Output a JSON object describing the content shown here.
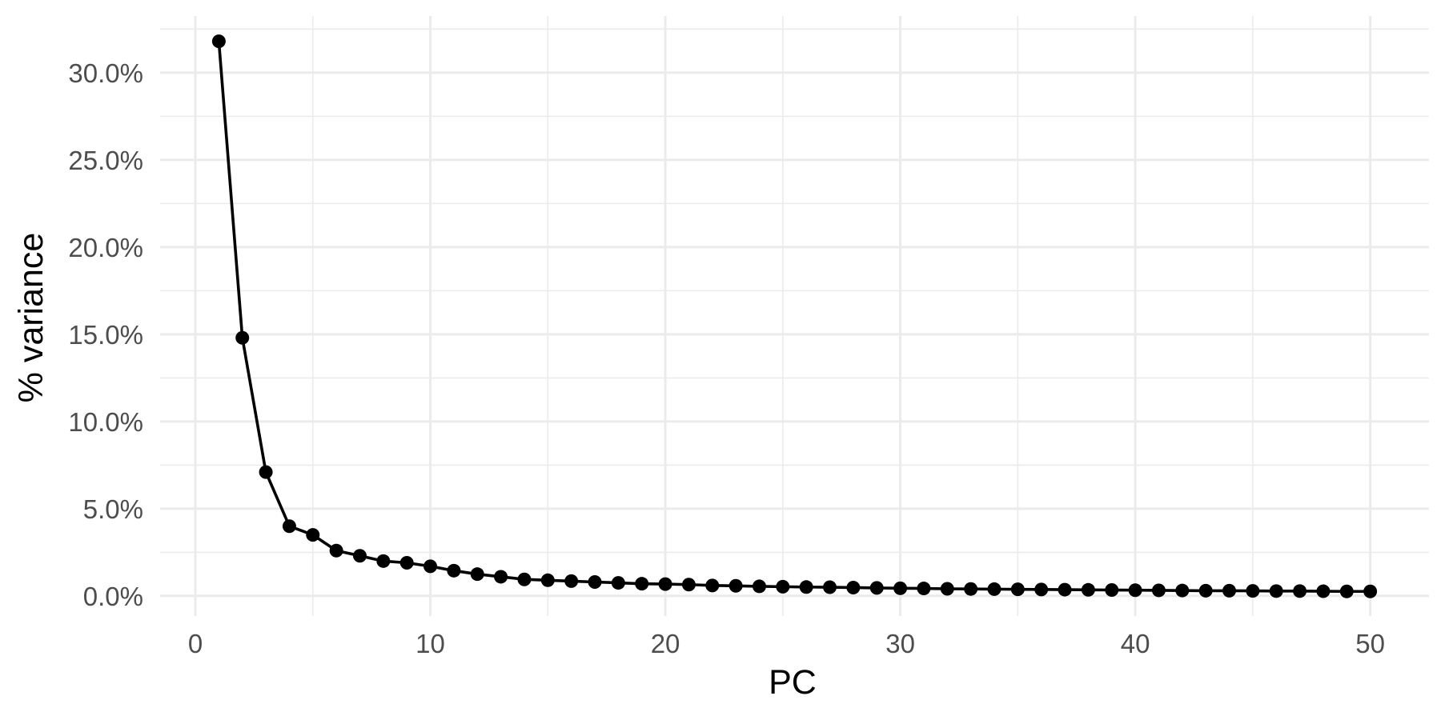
{
  "chart_data": {
    "type": "line",
    "title": "",
    "xlabel": "PC",
    "ylabel": "% variance",
    "xlim": [
      -1.5,
      52.5
    ],
    "ylim": [
      -0.0115,
      0.3325
    ],
    "x_major_ticks": [
      0,
      10,
      20,
      30,
      40,
      50
    ],
    "x_tick_labels": [
      "0",
      "10",
      "20",
      "30",
      "40",
      "50"
    ],
    "x_minor_ticks": [
      5,
      15,
      25,
      35,
      45
    ],
    "y_major_ticks": [
      0,
      0.05,
      0.1,
      0.15,
      0.2,
      0.25,
      0.3
    ],
    "y_tick_labels": [
      "0.0%",
      "5.0%",
      "10.0%",
      "15.0%",
      "20.0%",
      "25.0%",
      "30.0%"
    ],
    "y_minor_ticks": [
      0.025,
      0.075,
      0.125,
      0.175,
      0.225,
      0.275,
      0.325
    ],
    "grid": true,
    "legend": "none",
    "series_color": "#000000",
    "grid_color": "#ebebeb",
    "series": [
      {
        "x": [
          1,
          2,
          3,
          4,
          5,
          6,
          7,
          8,
          9,
          10,
          11,
          12,
          13,
          14,
          15,
          16,
          17,
          18,
          19,
          20,
          21,
          22,
          23,
          24,
          25,
          26,
          27,
          28,
          29,
          30,
          31,
          32,
          33,
          34,
          35,
          36,
          37,
          38,
          39,
          40,
          41,
          42,
          43,
          44,
          45,
          46,
          47,
          48,
          49,
          50
        ],
        "values": [
          0.318,
          0.148,
          0.071,
          0.04,
          0.035,
          0.026,
          0.023,
          0.02,
          0.019,
          0.017,
          0.0145,
          0.0125,
          0.011,
          0.0095,
          0.009,
          0.0085,
          0.008,
          0.0075,
          0.007,
          0.0068,
          0.0065,
          0.006,
          0.0058,
          0.0055,
          0.0053,
          0.0051,
          0.005,
          0.0048,
          0.0046,
          0.0044,
          0.0043,
          0.0041,
          0.004,
          0.0039,
          0.0038,
          0.0037,
          0.0036,
          0.0035,
          0.0034,
          0.0033,
          0.0032,
          0.0031,
          0.003,
          0.003,
          0.0029,
          0.0028,
          0.0028,
          0.0027,
          0.0026,
          0.0026
        ]
      }
    ]
  }
}
